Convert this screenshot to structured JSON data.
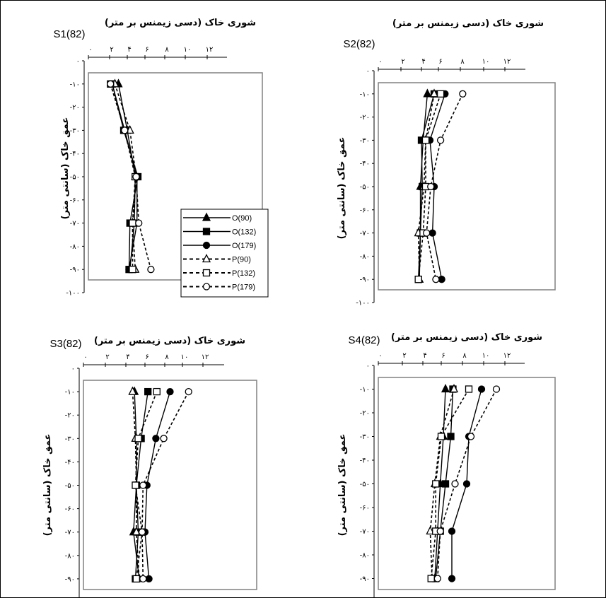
{
  "x_axis_title": "شوری خاک (دسی زیمنس بر متر)",
  "y_axis_title": "عمق خاک (سانتی متر)",
  "x_tick_labels": [
    "۰",
    "۲",
    "۴",
    "۶",
    "۸",
    "۱۰",
    "۱۲"
  ],
  "y_tick_labels": [
    "۰",
    "-۱۰",
    "-۲۰",
    "-۳۰",
    "-۴۰",
    "-۵۰",
    "-۶۰",
    "-۷۰",
    "-۸۰",
    "-۹۰",
    "-۱۰۰"
  ],
  "legend": [
    "O(90)",
    "O(132)",
    "O(179)",
    "P(90)",
    "P(132)",
    "P(179)"
  ],
  "chart_data": [
    {
      "type": "line",
      "panel": "S1(82)",
      "xlabel": "شوری خاک (دسی زیمنس بر متر)",
      "ylabel": "عمق خاک (سانتی متر)",
      "xlim": [
        0,
        13
      ],
      "ylim": [
        -100,
        0
      ],
      "series": [
        {
          "name": "O(90)",
          "style": "solid",
          "marker": "triangle-filled",
          "x": [
            3.0,
            4.0,
            4.9,
            4.8,
            4.3
          ],
          "y": [
            -10,
            -30,
            -50,
            -70,
            -90
          ]
        },
        {
          "name": "O(132)",
          "style": "solid",
          "marker": "square-filled",
          "x": [
            2.3,
            3.6,
            5.2,
            4.3,
            4.2
          ],
          "y": [
            -10,
            -30,
            -50,
            -70,
            -90
          ]
        },
        {
          "name": "O(179)",
          "style": "solid",
          "marker": "circle-filled",
          "x": [
            2.3,
            3.7,
            5.1,
            5.1,
            4.2
          ],
          "y": [
            -10,
            -30,
            -50,
            -70,
            -90
          ]
        },
        {
          "name": "P(90)",
          "style": "dotted",
          "marker": "triangle-open",
          "x": [
            2.6,
            4.3,
            5.0,
            4.6,
            4.9
          ],
          "y": [
            -10,
            -30,
            -50,
            -70,
            -90
          ]
        },
        {
          "name": "P(132)",
          "style": "dotted",
          "marker": "square-open",
          "x": [
            2.1,
            3.7,
            4.9,
            4.6,
            4.6
          ],
          "y": [
            -10,
            -30,
            -50,
            -70,
            -90
          ]
        },
        {
          "name": "P(179)",
          "style": "dotted",
          "marker": "circle-open",
          "x": [
            2.1,
            3.7,
            5.0,
            5.3,
            6.6
          ],
          "y": [
            -10,
            -30,
            -50,
            -70,
            -90
          ]
        }
      ]
    },
    {
      "type": "line",
      "panel": "S2(82)",
      "xlabel": "شوری خاک (دسی زیمنس بر متر)",
      "ylabel": "عمق خاک (سانتی متر)",
      "xlim": [
        0,
        13
      ],
      "ylim": [
        -100,
        0
      ],
      "series": [
        {
          "name": "O(90)",
          "style": "solid",
          "marker": "triangle-filled",
          "x": [
            4.7,
            4.2,
            3.9,
            3.9,
            3.8
          ],
          "y": [
            -10,
            -30,
            -50,
            -70,
            -90
          ]
        },
        {
          "name": "O(132)",
          "style": "solid",
          "marker": "square-filled",
          "x": [
            5.5,
            4.0,
            4.1,
            3.9,
            3.7
          ],
          "y": [
            -10,
            -30,
            -50,
            -70,
            -90
          ]
        },
        {
          "name": "O(179)",
          "style": "solid",
          "marker": "circle-filled",
          "x": [
            6.6,
            5.0,
            5.5,
            5.3,
            6.3
          ],
          "y": [
            -10,
            -30,
            -50,
            -70,
            -90
          ]
        },
        {
          "name": "P(90)",
          "style": "dotted",
          "marker": "triangle-open",
          "x": [
            5.5,
            4.5,
            4.3,
            3.7,
            3.8
          ],
          "y": [
            -10,
            -30,
            -50,
            -70,
            -90
          ]
        },
        {
          "name": "P(132)",
          "style": "dotted",
          "marker": "square-open",
          "x": [
            6.2,
            4.5,
            4.5,
            4.2,
            3.7
          ],
          "y": [
            -10,
            -30,
            -50,
            -70,
            -90
          ]
        },
        {
          "name": "P(179)",
          "style": "dotted",
          "marker": "circle-open",
          "x": [
            8.2,
            6.2,
            5.1,
            4.6,
            5.7
          ],
          "y": [
            -10,
            -30,
            -50,
            -70,
            -90
          ]
        }
      ]
    },
    {
      "type": "line",
      "panel": "S3(82)",
      "xlabel": "شوری خاک (دسی زیمنس بر متر)",
      "ylabel": "عمق خاک (سانتی متر)",
      "xlim": [
        0,
        13
      ],
      "ylim": [
        -100,
        0
      ],
      "series": [
        {
          "name": "O(90)",
          "style": "solid",
          "marker": "triangle-filled",
          "x": [
            4.9,
            5.1,
            5.1,
            4.8,
            5.4
          ],
          "y": [
            -10,
            -30,
            -50,
            -70,
            -90
          ]
        },
        {
          "name": "O(132)",
          "style": "solid",
          "marker": "square-filled",
          "x": [
            6.3,
            5.6,
            5.1,
            5.3,
            5.0
          ],
          "y": [
            -10,
            -30,
            -50,
            -70,
            -90
          ]
        },
        {
          "name": "O(179)",
          "style": "solid",
          "marker": "circle-filled",
          "x": [
            8.6,
            7.1,
            6.2,
            6.0,
            6.4
          ],
          "y": [
            -10,
            -30,
            -50,
            -70,
            -90
          ]
        },
        {
          "name": "P(90)",
          "style": "dotted",
          "marker": "triangle-open",
          "x": [
            4.7,
            5.0,
            5.1,
            5.1,
            5.4
          ],
          "y": [
            -10,
            -30,
            -50,
            -70,
            -90
          ]
        },
        {
          "name": "P(132)",
          "style": "dotted",
          "marker": "square-open",
          "x": [
            7.2,
            5.3,
            5.0,
            5.7,
            5.1
          ],
          "y": [
            -10,
            -30,
            -50,
            -70,
            -90
          ]
        },
        {
          "name": "P(179)",
          "style": "dotted",
          "marker": "circle-open",
          "x": [
            10.6,
            7.9,
            5.8,
            5.7,
            5.8
          ],
          "y": [
            -10,
            -30,
            -50,
            -70,
            -90
          ]
        }
      ]
    },
    {
      "type": "line",
      "panel": "S4(82)",
      "xlabel": "شوری خاک (دسی زیمنس بر متر)",
      "ylabel": "عمق خاک (سانتی متر)",
      "xlim": [
        0,
        13
      ],
      "ylim": [
        -100,
        0
      ],
      "series": [
        {
          "name": "O(90)",
          "style": "solid",
          "marker": "triangle-filled",
          "x": [
            6.4,
            6.2,
            5.9,
            5.6,
            5.3
          ],
          "y": [
            -10,
            -30,
            -50,
            -70,
            -90
          ]
        },
        {
          "name": "O(132)",
          "style": "solid",
          "marker": "square-filled",
          "x": [
            7.1,
            6.9,
            6.4,
            5.9,
            5.4
          ],
          "y": [
            -10,
            -30,
            -50,
            -70,
            -90
          ]
        },
        {
          "name": "O(179)",
          "style": "solid",
          "marker": "circle-filled",
          "x": [
            9.8,
            8.6,
            8.4,
            7.0,
            7.0
          ],
          "y": [
            -10,
            -30,
            -50,
            -70,
            -90
          ]
        },
        {
          "name": "P(90)",
          "style": "dotted",
          "marker": "triangle-open",
          "x": [
            7.2,
            5.9,
            5.3,
            4.8,
            5.0
          ],
          "y": [
            -10,
            -30,
            -50,
            -70,
            -90
          ]
        },
        {
          "name": "P(132)",
          "style": "dotted",
          "marker": "square-open",
          "x": [
            8.6,
            6.0,
            5.4,
            5.4,
            4.9
          ],
          "y": [
            -10,
            -30,
            -50,
            -70,
            -90
          ]
        },
        {
          "name": "P(179)",
          "style": "dotted",
          "marker": "circle-open",
          "x": [
            11.2,
            8.8,
            7.3,
            5.9,
            5.6
          ],
          "y": [
            -10,
            -30,
            -50,
            -70,
            -90
          ]
        }
      ]
    }
  ]
}
